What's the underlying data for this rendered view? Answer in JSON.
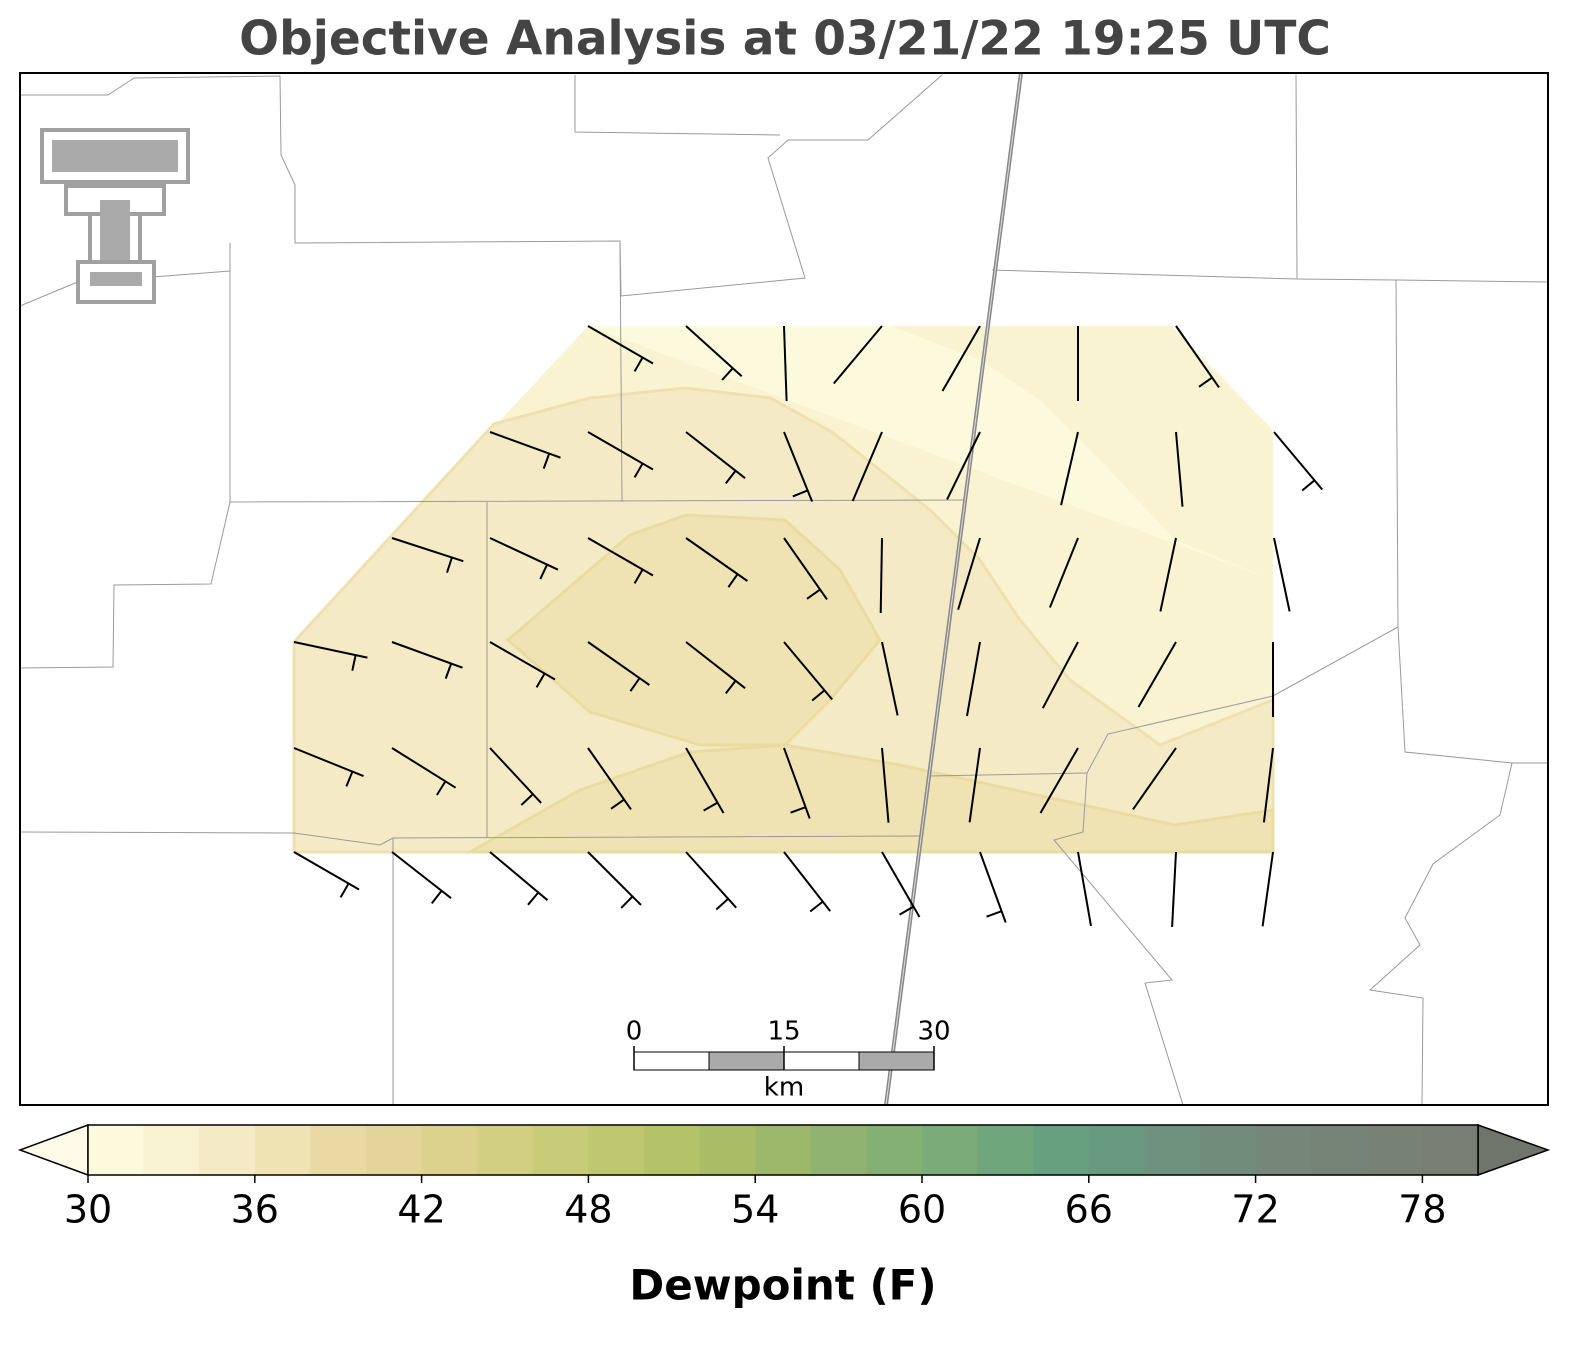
{
  "chart_data": {
    "type": "map",
    "title": "Objective Analysis at 03/21/22 19:25 UTC",
    "colorbar": {
      "label": "Dewpoint (F)",
      "lim": [
        30,
        80
      ],
      "ticks": [
        30,
        36,
        42,
        48,
        54,
        60,
        66,
        72,
        78
      ],
      "extend": "both",
      "colors": [
        "#fdf9dc",
        "#f9f3d2",
        "#f4ebc6",
        "#efe3b4",
        "#e9daa3",
        "#e3d598",
        "#dcd28e",
        "#d3cf82",
        "#c8cb78",
        "#bfc76f",
        "#b4c268",
        "#a8bd66",
        "#9cb86a",
        "#90b46f",
        "#84b074",
        "#7aab78",
        "#6fa67c",
        "#67a07f",
        "#689a80",
        "#6e917e",
        "#728c7c",
        "#758779",
        "#768477",
        "#778274",
        "#767f72"
      ],
      "under_color": "#fffbe8",
      "over_color": "#6f756b"
    },
    "scale_bar": {
      "lim": [
        0,
        30
      ],
      "ticks": [
        0,
        15,
        30
      ],
      "unit": "km"
    }
  }
}
